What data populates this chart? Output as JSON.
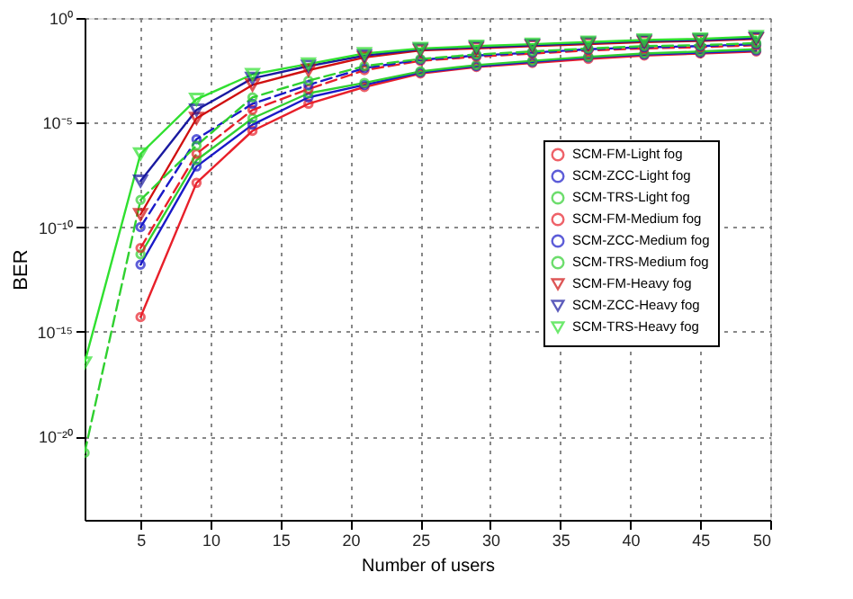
{
  "chart_data": {
    "type": "line",
    "xlabel": "Number of users",
    "ylabel": "BER",
    "log": "y",
    "grid": true,
    "legend": "right",
    "x": [
      1,
      5,
      9,
      13,
      17,
      21,
      25,
      29,
      33,
      37,
      41,
      45,
      49
    ],
    "xlim": [
      1,
      50
    ],
    "xticks": [
      5,
      10,
      15,
      20,
      25,
      30,
      35,
      40,
      45,
      50
    ],
    "ylim": [
      1e-24,
      1
    ],
    "yticks": [
      {
        "value": 1,
        "label": "10⁰"
      },
      {
        "value": 1e-05,
        "label": "10⁻⁵"
      },
      {
        "value": 1e-10,
        "label": "10⁻¹⁰"
      },
      {
        "value": 1e-15,
        "label": "10⁻¹⁵"
      },
      {
        "value": 1e-20,
        "label": "10⁻²⁰"
      }
    ],
    "series": [
      {
        "name": "SCM-FM-Light fog",
        "color": "#e8202a",
        "marker": "circle",
        "line_style": "solid",
        "values": [
          null,
          5e-15,
          1.3e-08,
          4e-06,
          7.9e-05,
          0.0005,
          0.0022,
          0.0045,
          0.0071,
          0.011,
          0.016,
          0.02,
          0.025
        ]
      },
      {
        "name": "SCM-ZCC-Light fog",
        "color": "#1a1ac8",
        "marker": "circle",
        "line_style": "solid",
        "values": [
          null,
          1.6e-12,
          7.9e-08,
          7.9e-06,
          0.00016,
          0.00063,
          0.0025,
          0.005,
          0.0079,
          0.013,
          0.018,
          0.022,
          0.028
        ]
      },
      {
        "name": "SCM-TRS-Light fog",
        "color": "#30d030",
        "marker": "circle",
        "line_style": "solid",
        "values": [
          null,
          5e-12,
          1.6e-07,
          1.6e-05,
          0.00025,
          0.00079,
          0.0028,
          0.0056,
          0.0089,
          0.014,
          0.02,
          0.025,
          0.032
        ]
      },
      {
        "name": "SCM-FM-Medium fog",
        "color": "#e8202a",
        "marker": "circle",
        "line_style": "dashed",
        "values": [
          null,
          1e-11,
          3.2e-07,
          4e-05,
          0.0004,
          0.0032,
          0.0089,
          0.014,
          0.02,
          0.028,
          0.035,
          0.04,
          0.05
        ]
      },
      {
        "name": "SCM-ZCC-Medium fog",
        "color": "#1a1ac8",
        "marker": "circle",
        "line_style": "dashed",
        "values": [
          null,
          1e-10,
          1.6e-06,
          7.9e-05,
          0.00063,
          0.004,
          0.01,
          0.016,
          0.022,
          0.032,
          0.04,
          0.045,
          0.056
        ]
      },
      {
        "name": "SCM-TRS-Medium fog",
        "color": "#30d030",
        "marker": "circle",
        "line_style": "dashed",
        "values": [
          1.6e-21,
          2e-09,
          7.9e-07,
          0.00016,
          0.001,
          0.005,
          0.011,
          0.018,
          0.025,
          0.035,
          0.045,
          0.05,
          0.063
        ]
      },
      {
        "name": "SCM-FM-Heavy fog",
        "color": "#d01010",
        "marker": "triangle",
        "line_style": "solid",
        "values": [
          null,
          4e-10,
          1.6e-05,
          0.00063,
          0.0032,
          0.013,
          0.028,
          0.035,
          0.045,
          0.056,
          0.071,
          0.079,
          0.1
        ]
      },
      {
        "name": "SCM-ZCC-Heavy fog",
        "color": "#1a1aa0",
        "marker": "triangle",
        "line_style": "solid",
        "values": [
          null,
          1.6e-08,
          4e-05,
          0.0013,
          0.005,
          0.016,
          0.032,
          0.04,
          0.05,
          0.063,
          0.079,
          0.089,
          0.11
        ]
      },
      {
        "name": "SCM-TRS-Heavy fog",
        "color": "#30e030",
        "marker": "triangle",
        "line_style": "solid",
        "values": [
          3.2e-17,
          3.2e-07,
          0.00013,
          0.002,
          0.0063,
          0.02,
          0.035,
          0.045,
          0.056,
          0.071,
          0.089,
          0.1,
          0.13
        ]
      }
    ]
  }
}
